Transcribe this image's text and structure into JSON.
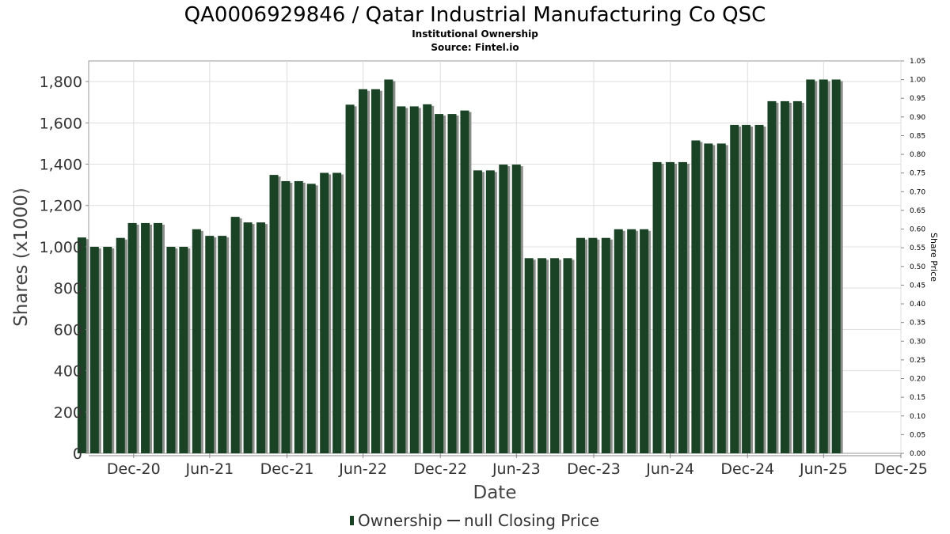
{
  "chart_data": {
    "type": "bar",
    "title": "QA0006929846 / Qatar Industrial Manufacturing Co QSC",
    "subtitle": "Institutional Ownership",
    "source": "Source: Fintel.io",
    "xlabel": "Date",
    "ylabel": "Shares (x1000)",
    "y2label": "Share Price",
    "ylim": [
      0,
      1900
    ],
    "y2lim": [
      0,
      1.05
    ],
    "xlim": [
      "2020-09-15",
      "2025-12-31"
    ],
    "yticks": [
      "0",
      "200",
      "400",
      "600",
      "800",
      "1,000",
      "1,200",
      "1,400",
      "1,600",
      "1,800"
    ],
    "y2ticks": [
      "0.00",
      "0.05",
      "0.10",
      "0.15",
      "0.20",
      "0.25",
      "0.30",
      "0.35",
      "0.40",
      "0.45",
      "0.50",
      "0.55",
      "0.60",
      "0.65",
      "0.70",
      "0.75",
      "0.80",
      "0.85",
      "0.90",
      "0.95",
      "1.00",
      "1.05"
    ],
    "xticks": [
      {
        "label": "Dec-20",
        "date": "2020-12-31"
      },
      {
        "label": "Jun-21",
        "date": "2021-06-30"
      },
      {
        "label": "Dec-21",
        "date": "2021-12-31"
      },
      {
        "label": "Jun-22",
        "date": "2022-06-30"
      },
      {
        "label": "Dec-22",
        "date": "2022-12-31"
      },
      {
        "label": "Jun-23",
        "date": "2023-06-30"
      },
      {
        "label": "Dec-23",
        "date": "2023-12-31"
      },
      {
        "label": "Jun-24",
        "date": "2024-06-30"
      },
      {
        "label": "Dec-24",
        "date": "2024-12-31"
      },
      {
        "label": "Jun-25",
        "date": "2025-06-30"
      },
      {
        "label": "Dec-25",
        "date": "2025-12-31"
      }
    ],
    "grid": true,
    "legend_position": "bottom",
    "series": [
      {
        "name": "Ownership",
        "color": "#1a4225",
        "dates": [
          "2020-10-31",
          "2020-11-30",
          "2020-12-31",
          "2021-01-31",
          "2021-02-28",
          "2021-03-31",
          "2021-04-30",
          "2021-05-31",
          "2021-06-30",
          "2021-07-31",
          "2021-08-31",
          "2021-09-30",
          "2021-10-31",
          "2021-11-30",
          "2021-12-31",
          "2022-01-31",
          "2022-02-28",
          "2022-03-31",
          "2022-04-30",
          "2022-05-31",
          "2022-06-30",
          "2022-07-31",
          "2022-08-31",
          "2022-09-30",
          "2022-10-31",
          "2022-11-30",
          "2022-12-31",
          "2023-01-31",
          "2023-02-28",
          "2023-03-31",
          "2023-04-30",
          "2023-05-31",
          "2023-06-30",
          "2023-07-31",
          "2023-08-31",
          "2023-09-30",
          "2023-10-31",
          "2023-11-30",
          "2023-12-31",
          "2024-01-31",
          "2024-02-29",
          "2024-03-31",
          "2024-04-30",
          "2024-05-31",
          "2024-06-30",
          "2024-07-31",
          "2024-08-31",
          "2024-09-30",
          "2024-10-31",
          "2024-11-30",
          "2024-12-31",
          "2025-01-31",
          "2025-02-28",
          "2025-03-31",
          "2025-04-30",
          "2025-05-31",
          "2025-06-30",
          "2025-07-31",
          "2025-08-31",
          "2025-09-30"
        ],
        "values": [
          1045,
          1000,
          1000,
          1043,
          1115,
          1115,
          1115,
          1000,
          1000,
          1085,
          1053,
          1053,
          1145,
          1118,
          1118,
          1348,
          1318,
          1318,
          1305,
          1358,
          1358,
          1688,
          1763,
          1763,
          1810,
          1680,
          1680,
          1690,
          1643,
          1643,
          1660,
          1370,
          1370,
          1398,
          1398,
          945,
          945,
          945,
          945,
          1043,
          1043,
          1043,
          1085,
          1085,
          1085,
          1410,
          1410,
          1410,
          1515,
          1500,
          1500,
          1590,
          1590,
          1590,
          1705,
          1705,
          1705,
          1810,
          1810,
          1810
        ]
      },
      {
        "name": "null Closing Price",
        "color": "#333333",
        "values": []
      }
    ]
  }
}
